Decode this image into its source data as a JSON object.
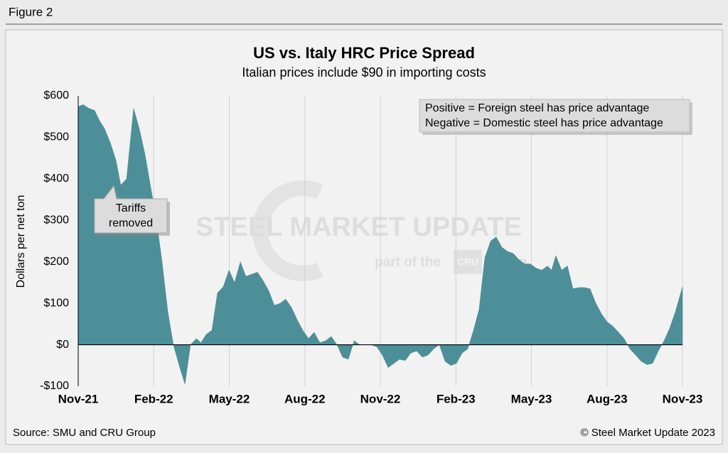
{
  "header": "Figure 2",
  "chart_data": {
    "type": "area",
    "title": "US vs. Italy HRC Price Spread",
    "subtitle": "Italian prices include $90 in importing costs",
    "y_label": "Dollars per net ton",
    "color": "#4d8f98",
    "grid": true,
    "xlim": [
      0,
      24
    ],
    "xticks": [
      {
        "value": 0,
        "label": "Nov-21"
      },
      {
        "value": 3,
        "label": "Feb-22"
      },
      {
        "value": 6,
        "label": "May-22"
      },
      {
        "value": 9,
        "label": "Aug-22"
      },
      {
        "value": 12,
        "label": "Nov-22"
      },
      {
        "value": 15,
        "label": "Feb-23"
      },
      {
        "value": 18,
        "label": "May-23"
      },
      {
        "value": 21,
        "label": "Aug-23"
      },
      {
        "value": 24,
        "label": "Nov-23"
      }
    ],
    "ylim": [
      -100,
      600
    ],
    "yticks": [
      {
        "value": 600,
        "label": "$600"
      },
      {
        "value": 500,
        "label": "$500"
      },
      {
        "value": 400,
        "label": "$400"
      },
      {
        "value": 300,
        "label": "$300"
      },
      {
        "value": 200,
        "label": "$200"
      },
      {
        "value": 100,
        "label": "$100"
      },
      {
        "value": 0,
        "label": "$0"
      },
      {
        "value": -100,
        "label": "-$100"
      }
    ],
    "x": [
      0,
      0.2,
      0.42,
      0.65,
      0.85,
      1.04,
      1.27,
      1.5,
      1.69,
      1.92,
      2.2,
      2.43,
      2.65,
      2.88,
      3.11,
      3.33,
      3.56,
      3.78,
      4.01,
      4.24,
      4.46,
      4.69,
      4.88,
      5.08,
      5.31,
      5.53,
      5.76,
      5.99,
      6.21,
      6.44,
      6.66,
      6.89,
      7.12,
      7.34,
      7.57,
      7.79,
      8.02,
      8.24,
      8.47,
      8.7,
      8.92,
      9.15,
      9.37,
      9.6,
      9.83,
      10.05,
      10.28,
      10.5,
      10.73,
      10.96,
      11.18,
      11.63,
      11.86,
      12.08,
      12.31,
      12.54,
      12.76,
      12.99,
      13.21,
      13.44,
      13.67,
      13.89,
      14.12,
      14.34,
      14.57,
      14.8,
      15.02,
      15.25,
      15.47,
      15.7,
      15.92,
      16.15,
      16.38,
      16.6,
      16.83,
      17.05,
      17.28,
      17.51,
      17.73,
      17.96,
      18.18,
      18.41,
      18.64,
      18.8,
      18.97,
      19.2,
      19.43,
      19.65,
      19.88,
      20.1,
      20.33,
      20.56,
      20.78,
      21.01,
      21.23,
      21.46,
      21.68,
      21.91,
      22.14,
      22.36,
      22.59,
      22.81,
      23.04,
      23.27,
      23.49,
      23.72,
      24
    ],
    "values": [
      574,
      579,
      570,
      565,
      540,
      522,
      488,
      445,
      385,
      400,
      570,
      520,
      460,
      380,
      300,
      200,
      80,
      0,
      -50,
      -95,
      0,
      15,
      5,
      25,
      35,
      125,
      140,
      180,
      150,
      200,
      165,
      170,
      175,
      155,
      130,
      95,
      100,
      110,
      90,
      60,
      35,
      15,
      30,
      5,
      10,
      20,
      0,
      -30,
      -35,
      10,
      0,
      0,
      -5,
      -25,
      -55,
      -45,
      -35,
      -38,
      -20,
      -15,
      -30,
      -25,
      -10,
      0,
      -40,
      -50,
      -45,
      -20,
      -10,
      35,
      85,
      210,
      250,
      260,
      235,
      225,
      220,
      205,
      195,
      195,
      185,
      180,
      190,
      180,
      215,
      180,
      190,
      135,
      138,
      138,
      135,
      100,
      75,
      55,
      45,
      30,
      15,
      -10,
      -25,
      -40,
      -48,
      -45,
      -15,
      10,
      40,
      80,
      140
    ],
    "note": [
      "Positive = Foreign steel has price advantage",
      "Negative = Domestic steel has price advantage"
    ],
    "annotation": [
      "Tariffs",
      "removed"
    ],
    "watermark": [
      "STEEL MARKET UPDATE",
      "part of the",
      "CRU",
      "Group"
    ]
  },
  "footer": {
    "source": "Source: SMU and CRU Group",
    "copyright": "© Steel Market Update 2023"
  }
}
